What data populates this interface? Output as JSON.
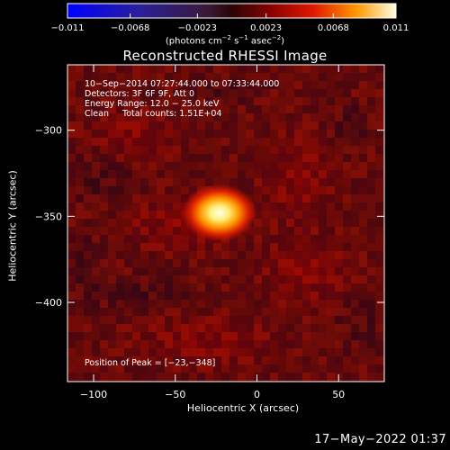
{
  "chart_data": {
    "type": "heatmap",
    "title": "Reconstructed RHESSI Image",
    "xlabel": "Heliocentric X (arcsec)",
    "ylabel": "Heliocentric Y (arcsec)",
    "xlim": [
      -116,
      78
    ],
    "ylim": [
      -446,
      -262
    ],
    "x_ticks": [
      -100,
      -50,
      0,
      50
    ],
    "y_ticks": [
      -300,
      -350,
      -400
    ],
    "x_tick_labels": [
      "−100",
      "−50",
      "0",
      "50"
    ],
    "y_tick_labels": [
      "−300",
      "−350",
      "−400"
    ],
    "colorbar": {
      "range": [
        -0.011,
        0.011
      ],
      "ticks": [
        -0.011,
        -0.0068,
        -0.0023,
        0.0023,
        0.0068,
        0.011
      ],
      "tick_labels": [
        "−0.011",
        "−0.0068",
        "−0.0023",
        "0.0023",
        "0.0068",
        "0.011"
      ],
      "unit_parts": [
        "(photons cm",
        "−2",
        " s",
        "−1",
        " asec",
        "−2",
        ")"
      ]
    },
    "info_lines": [
      "10−Sep−2014 07:27:44.000 to 07:33:44.000",
      "Detectors: 3F 6F 9F, Att 0",
      "Energy Range: 12.0 − 25.0 keV",
      "Clean     Total counts: 1.51E+04"
    ],
    "peak_label": "Position of Peak = [−23,−348]",
    "peak": {
      "x": -23,
      "y": -348,
      "value": 0.011
    },
    "colors": {
      "background": "#000000",
      "axes": "#ffffff"
    }
  },
  "footer": "17−May−2022 01:37"
}
